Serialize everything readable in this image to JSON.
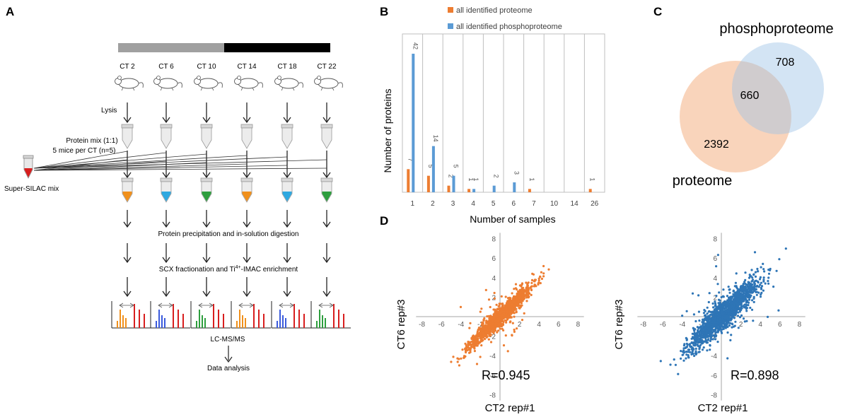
{
  "panels": {
    "a": {
      "letter": "A",
      "timepoints": [
        "CT 2",
        "CT 6",
        "CT 10",
        "CT 14",
        "CT 18",
        "CT 22"
      ],
      "lysis": "Lysis",
      "protein_mix_line1": "Protein mix (1:1)",
      "protein_mix_line2": "5 mice per CT (n=5)",
      "super_silac": "Super-SILAC mix",
      "step_digestion": "Protein precipitation and in-solution digestion",
      "step_scx_prefix": "SCX fractionation and Ti",
      "step_scx_sup": "4+",
      "step_scx_suffix": "-IMAC enrichment",
      "lcms": "LC-MS/MS",
      "data_analysis": "Data analysis",
      "tube_colors": [
        "#f0901c",
        "#2fa8e0",
        "#2e9e3e",
        "#f0901c",
        "#2fa8e0",
        "#2e9e3e"
      ],
      "spectrum_colors": [
        "#f0901c",
        "#3b5bdc",
        "#2e9e3e",
        "#f0901c",
        "#3b5bdc",
        "#2e9e3e"
      ]
    },
    "b": {
      "letter": "B"
    },
    "c": {
      "letter": "C",
      "phospho_label": "phosphoproteome",
      "proteome_label": "proteome",
      "phospho_only": "708",
      "overlap": "660",
      "proteome_only": "2392"
    },
    "d": {
      "letter": "D",
      "left": {
        "xlabel": "CT2 rep#1",
        "ylabel": "CT6 rep#3",
        "r": "R=0.945"
      },
      "right": {
        "xlabel": "CT2 rep#1",
        "ylabel": "CT6 rep#3",
        "r": "R=0.898"
      },
      "ticks": [
        "-8",
        "-6",
        "-4",
        "-2",
        "2",
        "4",
        "6",
        "8"
      ]
    }
  },
  "chart_data": [
    {
      "type": "bar",
      "title": "",
      "xlabel": "Number of samples",
      "ylabel": "Number of proteins",
      "categories": [
        "1",
        "2",
        "3",
        "4",
        "5",
        "6",
        "7",
        "10",
        "14",
        "26"
      ],
      "series": [
        {
          "name": "all identified proteome",
          "color": "#ed7d31",
          "values": [
            7,
            5,
            2,
            1,
            null,
            null,
            1,
            null,
            null,
            1
          ]
        },
        {
          "name": "all identified phosphoproteome",
          "color": "#5b9bd5",
          "values": [
            42,
            14,
            5,
            1,
            2,
            3,
            null,
            null,
            null,
            null
          ]
        }
      ],
      "ylim": [
        0,
        48
      ]
    },
    {
      "type": "scatter",
      "xlabel": "CT2 rep#1",
      "ylabel": "CT6 rep#3",
      "xlim": [
        -8,
        8
      ],
      "ylim": [
        -8,
        8
      ],
      "color": "#ed7d31",
      "r": 0.945
    },
    {
      "type": "scatter",
      "xlabel": "CT2 rep#1",
      "ylabel": "CT6 rep#3",
      "xlim": [
        -8,
        8
      ],
      "ylim": [
        -8,
        8
      ],
      "color": "#2e75b6",
      "r": 0.898
    }
  ]
}
